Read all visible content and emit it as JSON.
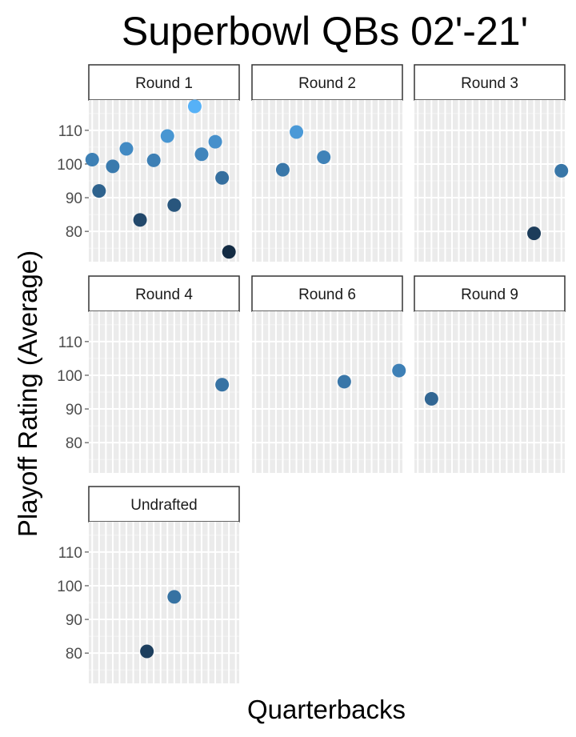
{
  "chart_data": {
    "type": "scatter",
    "title": "Superbowl QBs 02'-21'",
    "xlabel": "Quarterbacks",
    "ylabel": "Playoff Rating (Average)",
    "ylim": [
      71,
      119
    ],
    "yticks": [
      80,
      90,
      100,
      110
    ],
    "grid": true,
    "facet_by": "Draft round",
    "color_scale": {
      "low": "#132B43",
      "high": "#56B1F7"
    },
    "x_note": "x axis lists 22 quarterbacks (no tick labels shown); x = quarterback slot 1-22",
    "panels": [
      {
        "label": "Round 1",
        "points": [
          {
            "x": 1,
            "y": 101.3
          },
          {
            "x": 2,
            "y": 92.0
          },
          {
            "x": 4,
            "y": 99.3
          },
          {
            "x": 6,
            "y": 104.5
          },
          {
            "x": 8,
            "y": 83.4
          },
          {
            "x": 10,
            "y": 101.1
          },
          {
            "x": 12,
            "y": 108.3
          },
          {
            "x": 13,
            "y": 87.8
          },
          {
            "x": 16,
            "y": 117.1
          },
          {
            "x": 17,
            "y": 102.9
          },
          {
            "x": 19,
            "y": 106.6
          },
          {
            "x": 20,
            "y": 95.9
          },
          {
            "x": 21,
            "y": 73.9
          }
        ]
      },
      {
        "label": "Round 2",
        "points": [
          {
            "x": 5,
            "y": 98.3
          },
          {
            "x": 7,
            "y": 109.5
          },
          {
            "x": 11,
            "y": 102.0
          }
        ]
      },
      {
        "label": "Round 3",
        "points": [
          {
            "x": 18,
            "y": 79.4
          },
          {
            "x": 22,
            "y": 98.0
          }
        ]
      },
      {
        "label": "Round 4",
        "points": [
          {
            "x": 20,
            "y": 97.2
          }
        ]
      },
      {
        "label": "Round 6",
        "points": [
          {
            "x": 14,
            "y": 98.1
          },
          {
            "x": 22,
            "y": 101.4
          }
        ]
      },
      {
        "label": "Round 9",
        "points": [
          {
            "x": 3,
            "y": 93.0
          }
        ]
      },
      {
        "label": "Undrafted",
        "points": [
          {
            "x": 9,
            "y": 80.5
          },
          {
            "x": 13,
            "y": 96.7
          }
        ]
      }
    ]
  }
}
